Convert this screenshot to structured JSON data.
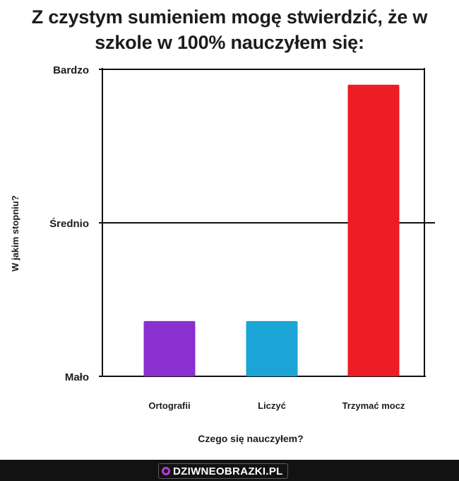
{
  "chart_data": {
    "type": "bar",
    "title_lines": [
      "Z czystym sumieniem mogę stwierdzić, że w",
      "szkole w 100% nauczyłem się:"
    ],
    "xlabel": "Czego się nauczyłem?",
    "ylabel": "W jakim stopniu?",
    "categories": [
      "Ortografii",
      "Liczyć",
      "Trzymać mocz"
    ],
    "values": [
      0.18,
      0.18,
      0.95
    ],
    "colors": [
      "#8a2fd0",
      "#1aa5d6",
      "#ee1c25"
    ],
    "yticks": [
      {
        "label": "Mało",
        "value": 0
      },
      {
        "label": "Średnio",
        "value": 0.5
      },
      {
        "label": "Bardzo",
        "value": 1
      }
    ],
    "ylim": [
      0,
      1
    ],
    "grid": "midline"
  },
  "footer": {
    "watermark": "DZIWNEOBRAZKI.PL"
  }
}
